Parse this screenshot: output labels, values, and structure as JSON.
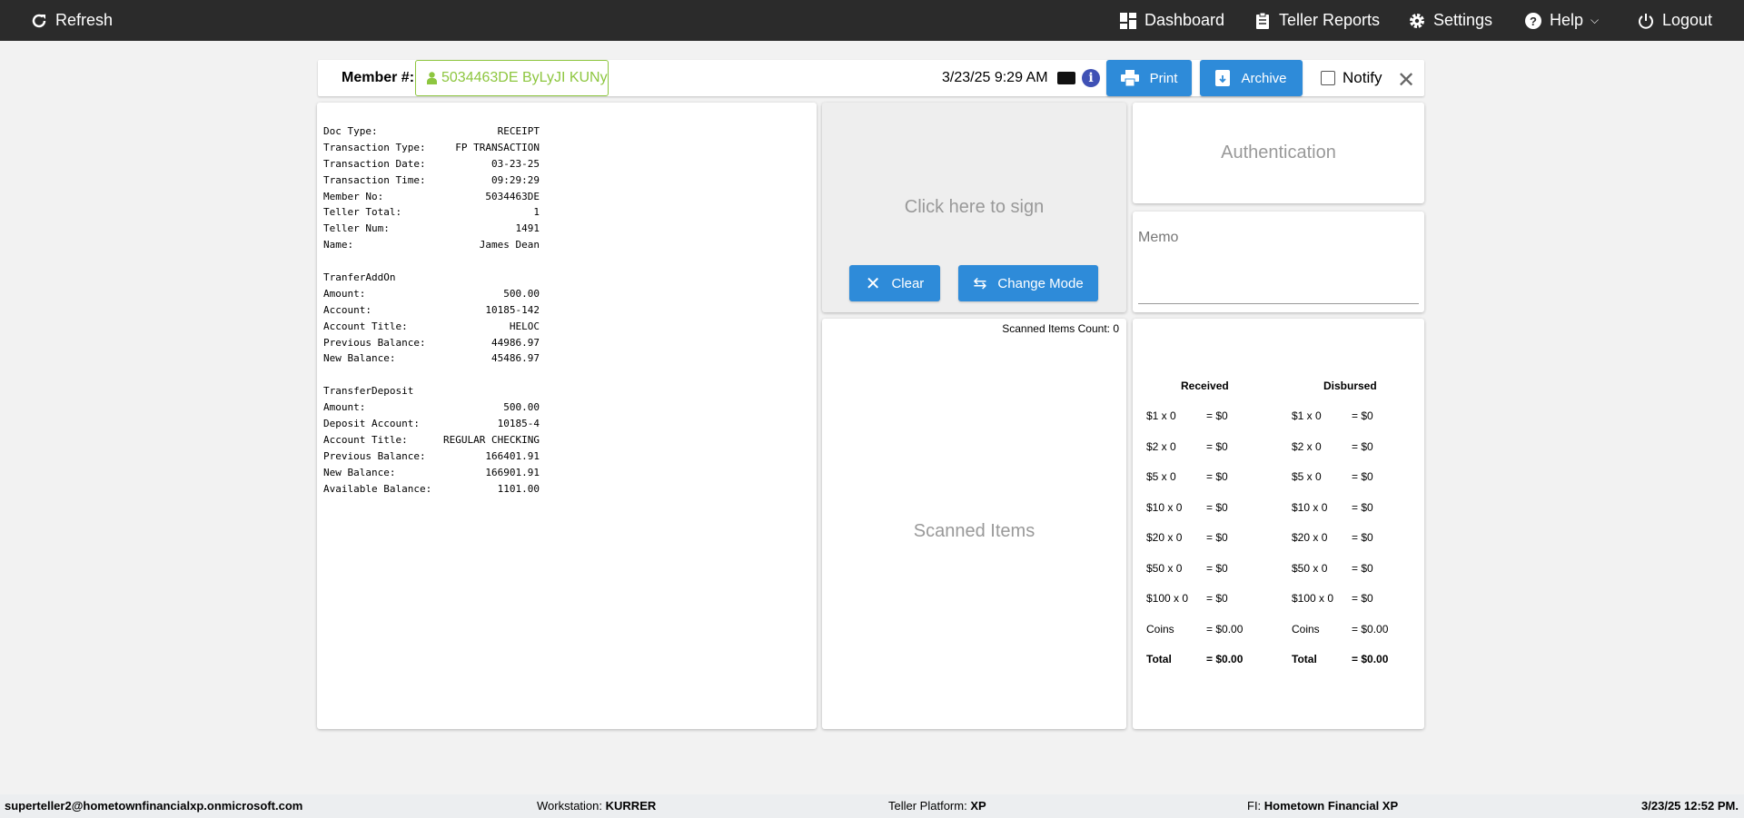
{
  "topbar": {
    "refresh": "Refresh",
    "dashboard": "Dashboard",
    "teller_reports": "Teller Reports",
    "settings": "Settings",
    "help": "Help",
    "logout": "Logout"
  },
  "toolbar": {
    "member_label": "Member #:",
    "member_value": "5034463DE ByLyJI KUNy",
    "datetime": "3/23/25 9:29 AM",
    "print": "Print",
    "archive": "Archive",
    "notify": "Notify",
    "notify_checked": false
  },
  "colors": {
    "accent": "#2e8bd9",
    "member": "#8dc63f",
    "topbar": "#2b2b2b"
  },
  "receipt": [
    {
      "k": "Doc Type:",
      "v": "RECEIPT"
    },
    {
      "k": "Transaction Type:",
      "v": "FP TRANSACTION"
    },
    {
      "k": "Transaction Date:",
      "v": "03-23-25"
    },
    {
      "k": "Transaction Time:",
      "v": "09:29:29"
    },
    {
      "k": "Member No:",
      "v": "5034463DE"
    },
    {
      "k": "Teller Total:",
      "v": "1"
    },
    {
      "k": "Teller Num:",
      "v": "1491"
    },
    {
      "k": "Name:",
      "v": "James Dean"
    },
    {
      "k": "",
      "v": ""
    },
    {
      "k": "TranferAddOn",
      "v": ""
    },
    {
      "k": "Amount:",
      "v": "500.00"
    },
    {
      "k": "Account:",
      "v": "10185-142"
    },
    {
      "k": "Account Title:",
      "v": "HELOC"
    },
    {
      "k": "Previous Balance:",
      "v": "44986.97"
    },
    {
      "k": "New Balance:",
      "v": "45486.97"
    },
    {
      "k": "",
      "v": ""
    },
    {
      "k": "TransferDeposit",
      "v": ""
    },
    {
      "k": "Amount:",
      "v": "500.00"
    },
    {
      "k": "Deposit Account:",
      "v": "10185-4"
    },
    {
      "k": "Account Title:",
      "v": "REGULAR CHECKING"
    },
    {
      "k": "Previous Balance:",
      "v": "166401.91"
    },
    {
      "k": "New Balance:",
      "v": "166901.91"
    },
    {
      "k": "Available Balance:",
      "v": "1101.00"
    }
  ],
  "sign": {
    "placeholder": "Click here to sign",
    "clear": "Clear",
    "change_mode": "Change Mode"
  },
  "scanned": {
    "count_label": "Scanned Items Count: 0",
    "placeholder": "Scanned Items"
  },
  "auth": {
    "label": "Authentication"
  },
  "memo": {
    "label": "Memo"
  },
  "cash": {
    "received_header": "Received",
    "disbursed_header": "Disbursed",
    "rows": [
      {
        "d": "$1 x 0",
        "e": "= $0"
      },
      {
        "d": "$2 x 0",
        "e": "= $0"
      },
      {
        "d": "$5 x 0",
        "e": "= $0"
      },
      {
        "d": "$10 x 0",
        "e": "= $0"
      },
      {
        "d": "$20 x 0",
        "e": "= $0"
      },
      {
        "d": "$50 x 0",
        "e": "= $0"
      },
      {
        "d": "$100 x 0",
        "e": "= $0"
      },
      {
        "d": "Coins",
        "e": "= $0.00"
      },
      {
        "d": "Total",
        "e": "= $0.00"
      }
    ]
  },
  "footer": {
    "user": "superteller2@hometownfinancialxp.onmicrosoft.com",
    "workstation_label": "Workstation:",
    "workstation": "KURRER",
    "platform_label": "Teller Platform:",
    "platform": "XP",
    "fi_label": "FI:",
    "fi": "Hometown Financial XP",
    "datetime": "3/23/25 12:52 PM."
  }
}
